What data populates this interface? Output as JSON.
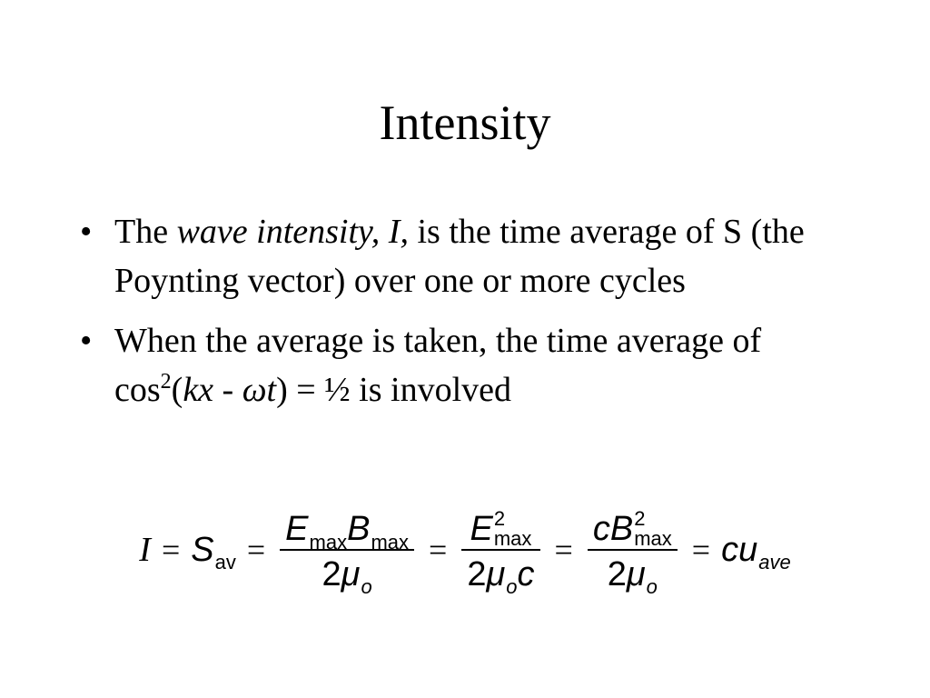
{
  "title": "Intensity",
  "bullets": [
    {
      "marker": "•",
      "runs": [
        {
          "text": "The ",
          "style": "normal"
        },
        {
          "text": "wave intensity, I,",
          "style": "italic"
        },
        {
          "text": " is the time average of S (the Poynting vector) over one or more cycles",
          "style": "normal"
        }
      ]
    },
    {
      "marker": "•",
      "runs": [
        {
          "text": "When the average is taken, the time average of cos",
          "style": "normal"
        },
        {
          "text": "2",
          "style": "sup"
        },
        {
          "text": "(",
          "style": "normal"
        },
        {
          "text": "kx",
          "style": "italic"
        },
        {
          "text": " - ",
          "style": "normal"
        },
        {
          "text": "ωt",
          "style": "italic"
        },
        {
          "text": ") = ½ is involved",
          "style": "normal"
        }
      ]
    }
  ],
  "equation": [
    {
      "base": "I",
      "kind": "lhs"
    },
    {
      "op": "="
    },
    {
      "base": "S",
      "sub": "av",
      "sub_italic": false
    },
    {
      "op": "="
    },
    {
      "num": [
        {
          "base": "E",
          "sub": "max",
          "sub_italic": false
        },
        {
          "base": "B",
          "sub": "max",
          "sub_italic": false
        }
      ],
      "den": [
        {
          "base": "2",
          "upright": true
        },
        {
          "base": "μ",
          "sub": "o",
          "sub_italic": true
        }
      ]
    },
    {
      "op": "="
    },
    {
      "num": [
        {
          "base": "E",
          "sup": "2",
          "sub": "max",
          "sub_italic": false
        }
      ],
      "den": [
        {
          "base": "2",
          "upright": true
        },
        {
          "base": "μ",
          "sub": "o",
          "sub_italic": true
        },
        {
          "base": "c"
        }
      ]
    },
    {
      "op": "="
    },
    {
      "num": [
        {
          "base": "c"
        },
        {
          "base": "B",
          "sup": "2",
          "sub": "max",
          "sub_italic": false
        }
      ],
      "den": [
        {
          "base": "2",
          "upright": true
        },
        {
          "base": "μ",
          "sub": "o",
          "sub_italic": true
        }
      ]
    },
    {
      "op": "="
    },
    {
      "base": "cu",
      "sub": "ave",
      "sub_italic": true
    }
  ]
}
